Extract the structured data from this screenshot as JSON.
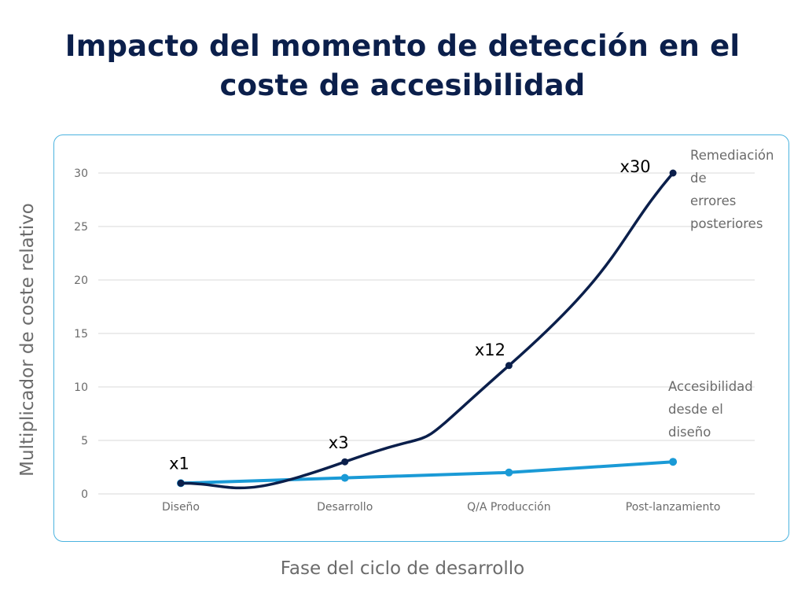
{
  "chart_data": {
    "type": "line",
    "title_lines": [
      "Impacto del momento de detección en el",
      "coste de accesibilidad"
    ],
    "xlabel": "Fase del ciclo de desarrollo",
    "ylabel": "Multiplicador de coste relativo",
    "categories": [
      "Diseño",
      "Desarrollo",
      "Q/A Producción",
      "Post-lanzamiento"
    ],
    "ylim": [
      0,
      30
    ],
    "yticks": [
      0,
      5,
      10,
      15,
      20,
      25,
      30
    ],
    "grid": "horizontal",
    "series": [
      {
        "name_lines": [
          "Remediación",
          "de",
          "errores",
          "posteriores"
        ],
        "values": [
          1,
          3,
          12,
          30
        ],
        "color": "#0b1f4b",
        "smooth": true,
        "data_labels": [
          "x1",
          "x3",
          "x12",
          "x30"
        ]
      },
      {
        "name_lines": [
          "Accesibilidad",
          "desde el",
          "diseño"
        ],
        "values": [
          1,
          1.5,
          2,
          3
        ],
        "color": "#1a9ad6",
        "smooth": false
      }
    ]
  }
}
